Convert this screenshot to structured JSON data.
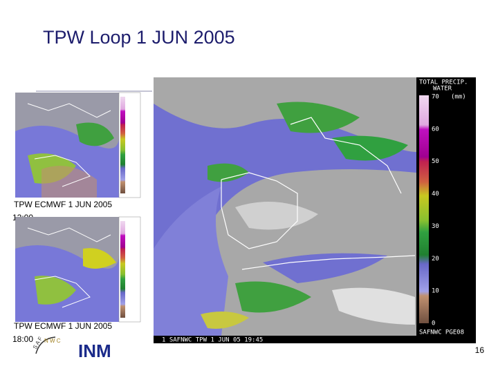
{
  "header": {
    "title": "TPW Loop 1 JUN 2005"
  },
  "panels": [
    {
      "caption": [
        "TPW ECMWF 1 JUN 2005",
        "12:00"
      ]
    },
    {
      "caption": [
        "TPW ECMWF 1 JUN 2005",
        "18:00"
      ]
    }
  ],
  "main_map": {
    "legend_title": [
      "TOTAL PRECIP.",
      "WATER"
    ],
    "legend_unit": "(mm)",
    "legend_labels": [
      "70",
      "60",
      "50",
      "40",
      "30",
      "20",
      "10",
      "0"
    ],
    "footer_left": "1 SAFNWC TPW 1 JUN 05 19:45",
    "footer_right": "SAFNWC PGE08"
  },
  "logos": {
    "saf": "S A F",
    "nwc": "N W C",
    "inm": "INM"
  },
  "page_number": "16"
}
